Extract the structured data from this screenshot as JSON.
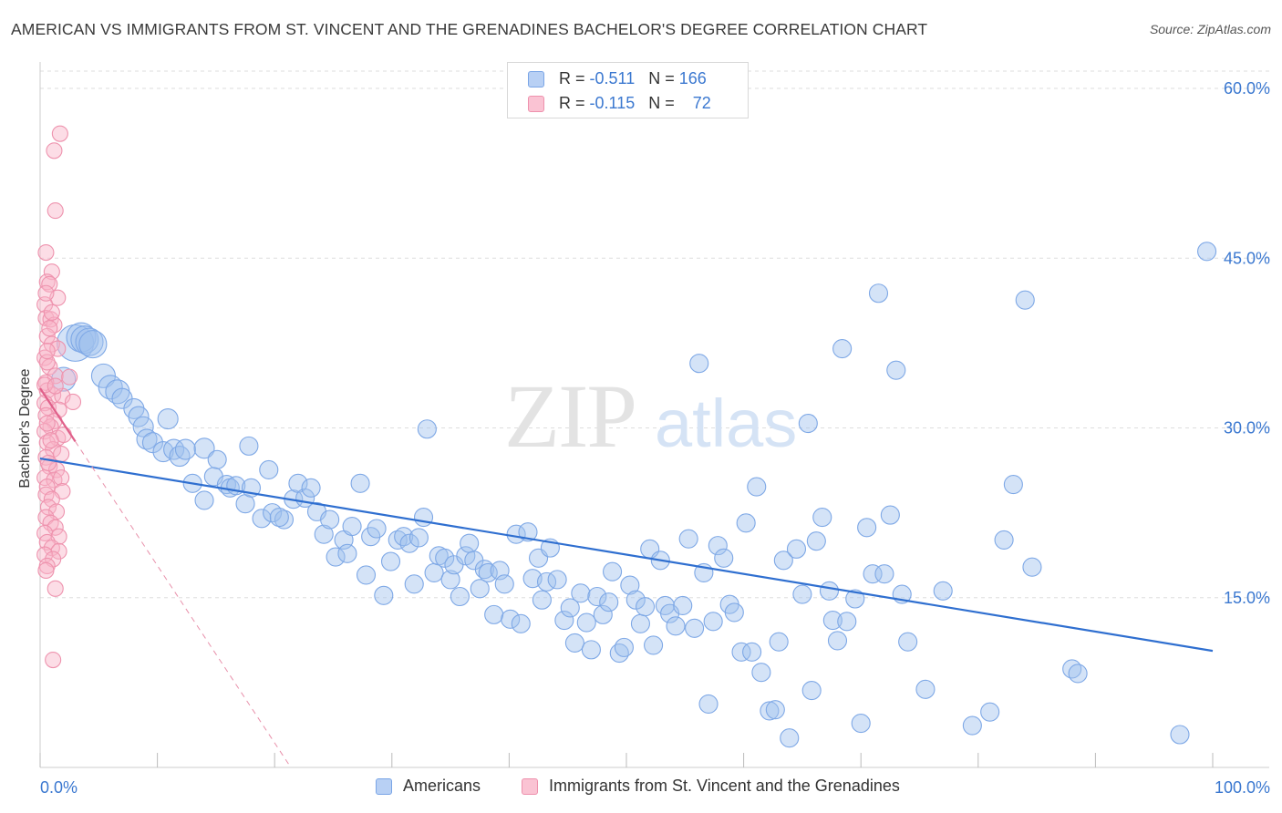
{
  "title": "AMERICAN VS IMMIGRANTS FROM ST. VINCENT AND THE GRENADINES BACHELOR'S DEGREE CORRELATION CHART",
  "source": "Source: ZipAtlas.com",
  "watermark": {
    "zip": "ZIP",
    "atlas": "atlas"
  },
  "legend": {
    "americans": {
      "r_label": "R = ",
      "r_value": "-0.511",
      "n_label": "N = ",
      "n_value": "166"
    },
    "immigrants": {
      "r_label": "R = ",
      "r_value": "-0.115",
      "n_label": "N = ",
      "n_value": "72"
    }
  },
  "colors": {
    "americans": "#4a86d8",
    "immigrants": "#e8769a",
    "tick_text": "#3b78d0"
  },
  "chart_data": {
    "type": "scatter",
    "xlabel": "",
    "ylabel": "Bachelor's Degree",
    "xlim": [
      0,
      100
    ],
    "ylim": [
      0,
      60
    ],
    "x_tick_labels": [
      "0.0%",
      "100.0%"
    ],
    "y_ticks": [
      {
        "value": 15,
        "label": "15.0%"
      },
      {
        "value": 30,
        "label": "30.0%"
      },
      {
        "value": 45,
        "label": "45.0%"
      },
      {
        "value": 60,
        "label": "60.0%"
      }
    ],
    "grid": true,
    "legend_position": "top-center",
    "series": [
      {
        "name": "Americans",
        "color": "#4a86d8",
        "trend": {
          "x": [
            0,
            100
          ],
          "y": [
            27.3,
            10.3
          ]
        },
        "points": [
          [
            3.0,
            37.5
          ],
          [
            3.5,
            38.0
          ],
          [
            3.8,
            37.8
          ],
          [
            4.2,
            37.6
          ],
          [
            4.5,
            37.4
          ],
          [
            2.0,
            34.3
          ],
          [
            5.4,
            34.6
          ],
          [
            6.0,
            33.6
          ],
          [
            6.6,
            33.2
          ],
          [
            7.0,
            32.6
          ],
          [
            8.0,
            31.7
          ],
          [
            8.4,
            31.0
          ],
          [
            8.8,
            30.1
          ],
          [
            9.1,
            29.0
          ],
          [
            9.6,
            28.7
          ],
          [
            10.5,
            27.9
          ],
          [
            10.9,
            30.8
          ],
          [
            11.4,
            28.1
          ],
          [
            11.9,
            27.5
          ],
          [
            12.4,
            28.1
          ],
          [
            14.0,
            28.2
          ],
          [
            15.1,
            27.2
          ],
          [
            17.8,
            28.4
          ],
          [
            13.0,
            25.1
          ],
          [
            14.0,
            23.6
          ],
          [
            14.8,
            25.7
          ],
          [
            15.9,
            25.0
          ],
          [
            16.2,
            24.7
          ],
          [
            16.7,
            24.9
          ],
          [
            17.5,
            23.3
          ],
          [
            18.0,
            24.7
          ],
          [
            18.9,
            22.0
          ],
          [
            19.5,
            26.3
          ],
          [
            19.8,
            22.5
          ],
          [
            20.8,
            21.9
          ],
          [
            20.4,
            22.1
          ],
          [
            21.6,
            23.7
          ],
          [
            22.0,
            25.1
          ],
          [
            22.6,
            23.8
          ],
          [
            23.1,
            24.7
          ],
          [
            23.6,
            22.6
          ],
          [
            24.2,
            20.6
          ],
          [
            24.7,
            21.9
          ],
          [
            25.2,
            18.6
          ],
          [
            25.9,
            20.1
          ],
          [
            26.2,
            18.9
          ],
          [
            26.6,
            21.3
          ],
          [
            27.3,
            25.1
          ],
          [
            27.8,
            17.0
          ],
          [
            28.2,
            20.4
          ],
          [
            28.7,
            21.1
          ],
          [
            29.3,
            15.2
          ],
          [
            29.9,
            18.2
          ],
          [
            30.5,
            20.1
          ],
          [
            31.0,
            20.4
          ],
          [
            31.5,
            19.8
          ],
          [
            31.9,
            16.2
          ],
          [
            32.3,
            20.3
          ],
          [
            32.7,
            22.1
          ],
          [
            33.0,
            29.9
          ],
          [
            33.6,
            17.2
          ],
          [
            34.0,
            18.7
          ],
          [
            34.5,
            18.5
          ],
          [
            35.0,
            16.6
          ],
          [
            35.3,
            17.9
          ],
          [
            35.8,
            15.1
          ],
          [
            36.3,
            18.7
          ],
          [
            36.6,
            19.8
          ],
          [
            37.0,
            18.3
          ],
          [
            37.5,
            15.8
          ],
          [
            37.9,
            17.5
          ],
          [
            38.2,
            17.2
          ],
          [
            38.7,
            13.5
          ],
          [
            39.2,
            17.4
          ],
          [
            39.6,
            16.2
          ],
          [
            40.1,
            13.1
          ],
          [
            40.6,
            20.6
          ],
          [
            41.0,
            12.7
          ],
          [
            41.6,
            20.8
          ],
          [
            42.0,
            16.7
          ],
          [
            42.5,
            18.5
          ],
          [
            42.8,
            14.8
          ],
          [
            43.2,
            16.4
          ],
          [
            43.5,
            19.4
          ],
          [
            44.1,
            16.6
          ],
          [
            44.7,
            13.0
          ],
          [
            45.2,
            14.1
          ],
          [
            45.6,
            11.0
          ],
          [
            46.1,
            15.4
          ],
          [
            46.6,
            12.8
          ],
          [
            47.0,
            10.4
          ],
          [
            47.5,
            15.1
          ],
          [
            48.0,
            13.5
          ],
          [
            48.5,
            14.6
          ],
          [
            48.8,
            17.3
          ],
          [
            49.4,
            10.1
          ],
          [
            49.8,
            10.6
          ],
          [
            50.3,
            16.1
          ],
          [
            50.8,
            14.8
          ],
          [
            51.2,
            12.7
          ],
          [
            51.6,
            14.2
          ],
          [
            52.0,
            19.3
          ],
          [
            52.3,
            10.8
          ],
          [
            52.9,
            18.3
          ],
          [
            53.3,
            14.3
          ],
          [
            53.7,
            13.6
          ],
          [
            54.2,
            12.5
          ],
          [
            54.8,
            14.3
          ],
          [
            55.3,
            20.2
          ],
          [
            55.8,
            12.3
          ],
          [
            56.2,
            35.7
          ],
          [
            56.6,
            17.2
          ],
          [
            57.0,
            5.6
          ],
          [
            57.4,
            12.9
          ],
          [
            57.8,
            19.6
          ],
          [
            58.3,
            18.5
          ],
          [
            58.8,
            14.4
          ],
          [
            59.2,
            13.7
          ],
          [
            59.8,
            10.2
          ],
          [
            60.2,
            21.6
          ],
          [
            60.7,
            10.2
          ],
          [
            61.1,
            24.8
          ],
          [
            61.5,
            8.4
          ],
          [
            62.2,
            5.0
          ],
          [
            62.7,
            5.1
          ],
          [
            63.0,
            11.1
          ],
          [
            63.4,
            18.3
          ],
          [
            63.9,
            2.6
          ],
          [
            64.5,
            19.3
          ],
          [
            65.0,
            15.3
          ],
          [
            65.5,
            30.4
          ],
          [
            65.8,
            6.8
          ],
          [
            66.2,
            20.0
          ],
          [
            66.7,
            22.1
          ],
          [
            67.3,
            15.6
          ],
          [
            67.6,
            13.0
          ],
          [
            68.0,
            11.2
          ],
          [
            68.4,
            37.0
          ],
          [
            68.8,
            12.9
          ],
          [
            69.5,
            14.9
          ],
          [
            70.0,
            3.9
          ],
          [
            70.5,
            21.2
          ],
          [
            71.0,
            17.1
          ],
          [
            71.5,
            41.9
          ],
          [
            72.0,
            17.1
          ],
          [
            72.5,
            22.3
          ],
          [
            73.0,
            35.1
          ],
          [
            73.5,
            15.3
          ],
          [
            74.0,
            11.1
          ],
          [
            75.5,
            6.9
          ],
          [
            77.0,
            15.6
          ],
          [
            79.5,
            3.7
          ],
          [
            81.0,
            4.9
          ],
          [
            82.2,
            20.1
          ],
          [
            83.0,
            25.0
          ],
          [
            84.0,
            41.3
          ],
          [
            84.6,
            17.7
          ],
          [
            88.0,
            8.7
          ],
          [
            88.5,
            8.3
          ],
          [
            97.2,
            2.9
          ],
          [
            99.5,
            45.6
          ]
        ]
      },
      {
        "name": "Immigrants from St. Vincent and the Grenadines",
        "color": "#e8769a",
        "trend": {
          "x": [
            0,
            3.0
          ],
          "y": [
            33.5,
            28.8
          ]
        },
        "points": [
          [
            1.7,
            56.0
          ],
          [
            1.2,
            54.5
          ],
          [
            1.3,
            49.2
          ],
          [
            0.5,
            45.5
          ],
          [
            1.0,
            43.8
          ],
          [
            0.6,
            42.9
          ],
          [
            0.8,
            42.7
          ],
          [
            1.5,
            41.5
          ],
          [
            0.4,
            40.9
          ],
          [
            0.5,
            39.7
          ],
          [
            0.9,
            39.6
          ],
          [
            1.2,
            39.1
          ],
          [
            0.6,
            38.1
          ],
          [
            1.0,
            37.4
          ],
          [
            1.5,
            37.0
          ],
          [
            0.4,
            36.2
          ],
          [
            0.8,
            35.4
          ],
          [
            1.3,
            34.6
          ],
          [
            2.5,
            34.5
          ],
          [
            0.5,
            34.0
          ],
          [
            0.6,
            33.3
          ],
          [
            1.1,
            32.9
          ],
          [
            1.9,
            32.8
          ],
          [
            2.8,
            32.3
          ],
          [
            0.4,
            32.2
          ],
          [
            0.7,
            31.8
          ],
          [
            1.6,
            31.6
          ],
          [
            0.5,
            31.1
          ],
          [
            1.2,
            30.6
          ],
          [
            0.9,
            30.1
          ],
          [
            0.4,
            29.7
          ],
          [
            1.5,
            29.1
          ],
          [
            2.0,
            29.4
          ],
          [
            0.6,
            28.7
          ],
          [
            1.1,
            28.1
          ],
          [
            1.8,
            27.7
          ],
          [
            0.5,
            27.4
          ],
          [
            0.8,
            26.6
          ],
          [
            1.4,
            26.3
          ],
          [
            0.4,
            25.6
          ],
          [
            1.2,
            25.4
          ],
          [
            1.8,
            25.6
          ],
          [
            0.6,
            24.8
          ],
          [
            1.9,
            24.4
          ],
          [
            0.5,
            24.1
          ],
          [
            1.0,
            23.7
          ],
          [
            0.7,
            23.0
          ],
          [
            1.4,
            22.6
          ],
          [
            0.5,
            22.1
          ],
          [
            0.9,
            21.6
          ],
          [
            1.3,
            21.2
          ],
          [
            0.4,
            20.7
          ],
          [
            1.6,
            20.4
          ],
          [
            0.6,
            19.9
          ],
          [
            1.0,
            19.4
          ],
          [
            1.6,
            19.1
          ],
          [
            0.4,
            18.8
          ],
          [
            1.1,
            18.4
          ],
          [
            0.6,
            17.8
          ],
          [
            0.5,
            17.4
          ],
          [
            1.3,
            15.8
          ],
          [
            1.1,
            9.5
          ],
          [
            0.4,
            33.8
          ],
          [
            0.6,
            35.8
          ],
          [
            0.8,
            38.8
          ],
          [
            0.5,
            41.9
          ],
          [
            1.0,
            40.2
          ],
          [
            0.6,
            30.4
          ],
          [
            0.7,
            26.9
          ],
          [
            0.9,
            28.9
          ],
          [
            1.3,
            33.7
          ],
          [
            0.6,
            36.8
          ]
        ]
      }
    ],
    "point_sizes_note": "larger markers near x 2-5 for Americans"
  }
}
